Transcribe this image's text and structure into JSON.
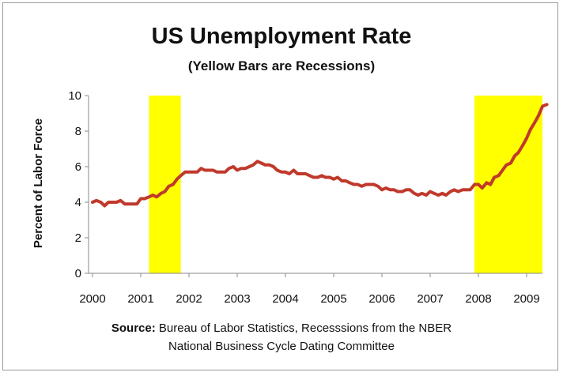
{
  "chart_data": {
    "type": "line",
    "title": "US Unemployment Rate",
    "subtitle": "(Yellow Bars are Recessions)",
    "ylabel": "Percent of Labor Force",
    "xlabel": "",
    "ylim": [
      0,
      10
    ],
    "yticks": [
      "0",
      "2",
      "4",
      "6",
      "8",
      "10"
    ],
    "xlim": [
      2000,
      2009.45
    ],
    "xticks": [
      "2000",
      "2001",
      "2002",
      "2003",
      "2004",
      "2005",
      "2006",
      "2007",
      "2008",
      "2009"
    ],
    "grid": false,
    "line_color": "#c0392b",
    "recession_color": "#ffff00",
    "recessions": [
      {
        "start": 2001.17,
        "end": 2001.83
      },
      {
        "start": 2007.92,
        "end": 2009.45
      }
    ],
    "series": [
      {
        "x": [
          2000.0,
          2000.08,
          2000.17,
          2000.25,
          2000.33,
          2000.42,
          2000.5,
          2000.58,
          2000.67,
          2000.75,
          2000.83,
          2000.92,
          2001.0,
          2001.08,
          2001.17,
          2001.25,
          2001.33,
          2001.42,
          2001.5,
          2001.58,
          2001.67,
          2001.75,
          2001.83,
          2001.92,
          2002.0,
          2002.08,
          2002.17,
          2002.25,
          2002.33,
          2002.42,
          2002.5,
          2002.58,
          2002.67,
          2002.75,
          2002.83,
          2002.92,
          2003.0,
          2003.08,
          2003.17,
          2003.25,
          2003.33,
          2003.42,
          2003.5,
          2003.58,
          2003.67,
          2003.75,
          2003.83,
          2003.92,
          2004.0,
          2004.08,
          2004.17,
          2004.25,
          2004.33,
          2004.42,
          2004.5,
          2004.58,
          2004.67,
          2004.75,
          2004.83,
          2004.92,
          2005.0,
          2005.08,
          2005.17,
          2005.25,
          2005.33,
          2005.42,
          2005.5,
          2005.58,
          2005.67,
          2005.75,
          2005.83,
          2005.92,
          2006.0,
          2006.08,
          2006.17,
          2006.25,
          2006.33,
          2006.42,
          2006.5,
          2006.58,
          2006.67,
          2006.75,
          2006.83,
          2006.92,
          2007.0,
          2007.08,
          2007.17,
          2007.25,
          2007.33,
          2007.42,
          2007.5,
          2007.58,
          2007.67,
          2007.75,
          2007.83,
          2007.92,
          2008.0,
          2008.08,
          2008.17,
          2008.25,
          2008.33,
          2008.42,
          2008.5,
          2008.58,
          2008.67,
          2008.75,
          2008.83,
          2008.92,
          2009.0,
          2009.08,
          2009.17,
          2009.25,
          2009.33,
          2009.42
        ],
        "values": [
          4.0,
          4.1,
          4.0,
          3.8,
          4.0,
          4.0,
          4.0,
          4.1,
          3.9,
          3.9,
          3.9,
          3.9,
          4.2,
          4.2,
          4.3,
          4.4,
          4.3,
          4.5,
          4.6,
          4.9,
          5.0,
          5.3,
          5.5,
          5.7,
          5.7,
          5.7,
          5.7,
          5.9,
          5.8,
          5.8,
          5.8,
          5.7,
          5.7,
          5.7,
          5.9,
          6.0,
          5.8,
          5.9,
          5.9,
          6.0,
          6.1,
          6.3,
          6.2,
          6.1,
          6.1,
          6.0,
          5.8,
          5.7,
          5.7,
          5.6,
          5.8,
          5.6,
          5.6,
          5.6,
          5.5,
          5.4,
          5.4,
          5.5,
          5.4,
          5.4,
          5.3,
          5.4,
          5.2,
          5.2,
          5.1,
          5.0,
          5.0,
          4.9,
          5.0,
          5.0,
          5.0,
          4.9,
          4.7,
          4.8,
          4.7,
          4.7,
          4.6,
          4.6,
          4.7,
          4.7,
          4.5,
          4.4,
          4.5,
          4.4,
          4.6,
          4.5,
          4.4,
          4.5,
          4.4,
          4.6,
          4.7,
          4.6,
          4.7,
          4.7,
          4.7,
          5.0,
          5.0,
          4.8,
          5.1,
          5.0,
          5.4,
          5.5,
          5.8,
          6.1,
          6.2,
          6.6,
          6.8,
          7.2,
          7.6,
          8.1,
          8.5,
          8.9,
          9.4,
          9.5
        ]
      }
    ],
    "source_label": "Source:",
    "source_line1": "Bureau of Labor Statistics, Recesssions from the NBER",
    "source_line2": "National Business Cycle Dating Committee"
  }
}
